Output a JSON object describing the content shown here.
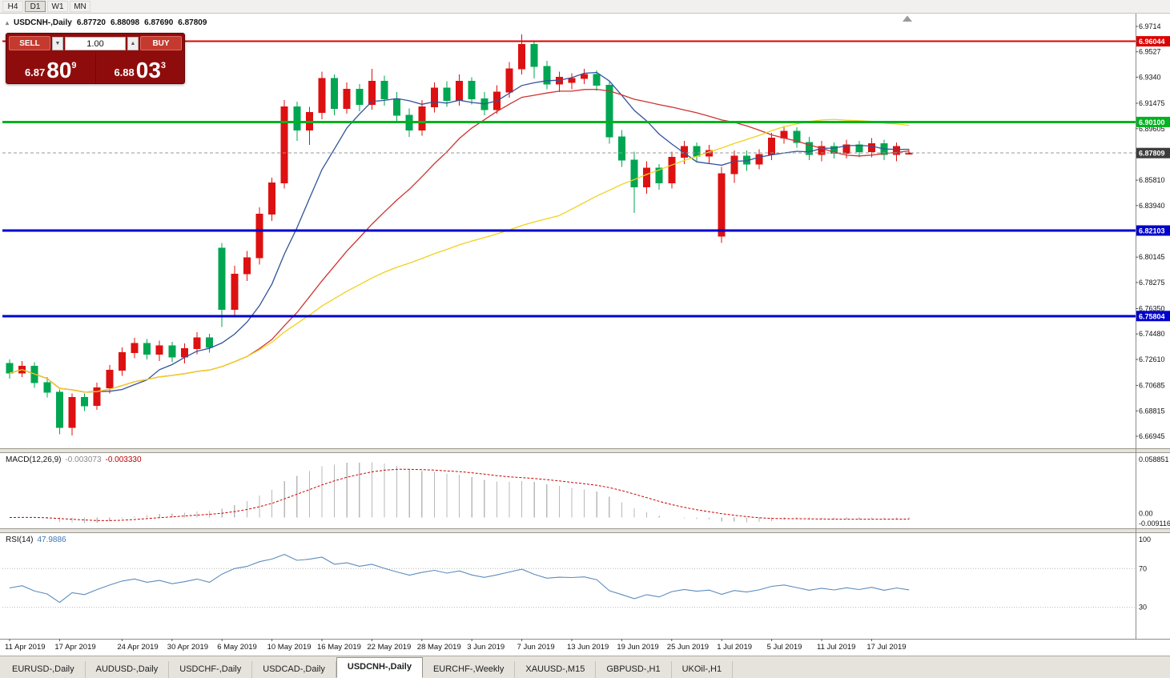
{
  "toolbar": {
    "timeframes": [
      "H4",
      "D1",
      "W1",
      "MN"
    ],
    "active": "D1"
  },
  "chart_header": {
    "collapse_icon": "▴",
    "symbol": "USDCNH-,Daily",
    "open": "6.87720",
    "high": "6.88098",
    "low": "6.87690",
    "close": "6.87809"
  },
  "trade_panel": {
    "sell_label": "SELL",
    "buy_label": "BUY",
    "volume": "1.00",
    "spinner_down": "▼",
    "spinner_up": "▲",
    "sell_small": "6.87",
    "sell_big": "80",
    "sell_sup": "9",
    "buy_small": "6.88",
    "buy_big": "03",
    "buy_sup": "3"
  },
  "indicators": {
    "macd": {
      "label": "MACD(12,26,9)",
      "value_main": "-0.003073",
      "value_signal": "-0.003330",
      "axis": [
        "0.058851",
        "0.00",
        "-0.009116"
      ]
    },
    "rsi": {
      "label": "RSI(14)",
      "value": "47.9886",
      "levels": [
        "100",
        "70",
        "30"
      ]
    }
  },
  "tabs": {
    "items": [
      {
        "label": "EURUSD-,Daily",
        "active": false
      },
      {
        "label": "AUDUSD-,Daily",
        "active": false
      },
      {
        "label": "USDCHF-,Daily",
        "active": false
      },
      {
        "label": "USDCAD-,Daily",
        "active": false
      },
      {
        "label": "USDCNH-,Daily",
        "active": true
      },
      {
        "label": "EURCHF-,Weekly",
        "active": false
      },
      {
        "label": "XAUUSD-,M15",
        "active": false
      },
      {
        "label": "GBPUSD-,H1",
        "active": false
      },
      {
        "label": "UKOil-,H1",
        "active": false
      }
    ]
  },
  "chart_data": {
    "type": "candlestick",
    "title": "USDCNH-,Daily",
    "timeframe": "Daily",
    "colors": {
      "up": "#dd1111",
      "down": "#00a651",
      "ma_fast": "#31539b",
      "ma_mid": "#cf3333",
      "ma_slow": "#f0d21e",
      "macd_hist": "#b8b8b8",
      "macd_signal": "#cc0000",
      "rsi_line": "#5b8cbe",
      "level_dotted": "#b5b5b5"
    },
    "price_axis": {
      "y_top_price": 6.9761,
      "y_bottom_price": 6.6618,
      "ticks": [
        {
          "text": "6.9714",
          "price": 6.9714
        },
        {
          "text": "6.9527",
          "price": 6.9527
        },
        {
          "text": "6.9340",
          "price": 6.934
        },
        {
          "text": "6.91475",
          "price": 6.91475
        },
        {
          "text": "6.89605",
          "price": 6.89605
        },
        {
          "text": "6.85810",
          "price": 6.8581
        },
        {
          "text": "6.83940",
          "price": 6.8394
        },
        {
          "text": "6.80145",
          "price": 6.80145
        },
        {
          "text": "6.78275",
          "price": 6.78275
        },
        {
          "text": "6.76350",
          "price": 6.7635
        },
        {
          "text": "6.74480",
          "price": 6.7448
        },
        {
          "text": "6.72610",
          "price": 6.7261
        },
        {
          "text": "6.70685",
          "price": 6.70685
        },
        {
          "text": "6.68815",
          "price": 6.68815
        },
        {
          "text": "6.66945",
          "price": 6.66945
        }
      ],
      "badges": [
        {
          "text": "6.96044",
          "price": 6.96044,
          "color": "#dd0000"
        },
        {
          "text": "6.90100",
          "price": 6.901,
          "color": "#00b21e"
        },
        {
          "text": "6.87809",
          "price": 6.87809,
          "color": "#3c3c3c"
        },
        {
          "text": "6.82103",
          "price": 6.82103,
          "color": "#0000cc"
        },
        {
          "text": "6.75804",
          "price": 6.75804,
          "color": "#0000cc"
        }
      ]
    },
    "hlines": [
      {
        "price": 6.96044,
        "color": "#dd0000",
        "width": 2
      },
      {
        "price": 6.901,
        "color": "#00b21e",
        "width": 3
      },
      {
        "price": 6.82103,
        "color": "#0000cc",
        "width": 3
      },
      {
        "price": 6.75804,
        "color": "#0000cc",
        "width": 3
      },
      {
        "price": 6.87809,
        "color": "#999999",
        "width": 1,
        "dashed": true
      }
    ],
    "moving_averages": [
      {
        "period": 8,
        "color": "#31539b"
      },
      {
        "period": 20,
        "color": "#cf3333"
      },
      {
        "period": 45,
        "color": "#f0d21e"
      }
    ],
    "macd": {
      "params": [
        12,
        26,
        9
      ],
      "y_max": 0.058851,
      "y_min": -0.009116
    },
    "rsi": {
      "period": 14,
      "levels": [
        70,
        30
      ]
    },
    "date_labels": [
      {
        "label": "11 Apr 2019",
        "i": 0
      },
      {
        "label": "17 Apr 2019",
        "i": 4
      },
      {
        "label": "24 Apr 2019",
        "i": 9
      },
      {
        "label": "30 Apr 2019",
        "i": 13
      },
      {
        "label": "6 May 2019",
        "i": 17
      },
      {
        "label": "10 May 2019",
        "i": 21
      },
      {
        "label": "16 May 2019",
        "i": 25
      },
      {
        "label": "22 May 2019",
        "i": 29
      },
      {
        "label": "28 May 2019",
        "i": 33
      },
      {
        "label": "3 Jun 2019",
        "i": 37
      },
      {
        "label": "7 Jun 2019",
        "i": 41
      },
      {
        "label": "13 Jun 2019",
        "i": 45
      },
      {
        "label": "19 Jun 2019",
        "i": 49
      },
      {
        "label": "25 Jun 2019",
        "i": 53
      },
      {
        "label": "1 Jul 2019",
        "i": 57
      },
      {
        "label": "5 Jul 2019",
        "i": 61
      },
      {
        "label": "11 Jul 2019",
        "i": 65
      },
      {
        "label": "17 Jul 2019",
        "i": 69
      }
    ],
    "candles": [
      [
        6.723,
        6.726,
        6.712,
        6.716
      ],
      [
        6.716,
        6.725,
        6.713,
        6.721
      ],
      [
        6.721,
        6.724,
        6.705,
        6.709
      ],
      [
        6.709,
        6.713,
        6.698,
        6.702
      ],
      [
        6.702,
        6.704,
        6.671,
        6.676
      ],
      [
        6.676,
        6.701,
        6.67,
        6.698
      ],
      [
        6.698,
        6.701,
        6.688,
        6.692
      ],
      [
        6.692,
        6.709,
        6.689,
        6.705
      ],
      [
        6.705,
        6.722,
        6.701,
        6.718
      ],
      [
        6.718,
        6.735,
        6.714,
        6.731
      ],
      [
        6.731,
        6.742,
        6.727,
        6.738
      ],
      [
        6.738,
        6.741,
        6.726,
        6.73
      ],
      [
        6.73,
        6.74,
        6.725,
        6.736
      ],
      [
        6.736,
        6.739,
        6.724,
        6.728
      ],
      [
        6.728,
        6.738,
        6.723,
        6.734
      ],
      [
        6.734,
        6.746,
        6.73,
        6.742
      ],
      [
        6.742,
        6.745,
        6.731,
        6.735
      ],
      [
        6.808,
        6.812,
        6.75,
        6.763
      ],
      [
        6.763,
        6.795,
        6.758,
        6.789
      ],
      [
        6.789,
        6.806,
        6.784,
        6.801
      ],
      [
        6.801,
        6.838,
        6.796,
        6.833
      ],
      [
        6.833,
        6.86,
        6.828,
        6.856
      ],
      [
        6.856,
        6.917,
        6.852,
        6.912
      ],
      [
        6.912,
        6.916,
        6.887,
        6.895
      ],
      [
        6.895,
        6.912,
        6.884,
        6.908
      ],
      [
        6.908,
        6.938,
        6.903,
        6.933
      ],
      [
        6.933,
        6.936,
        6.906,
        6.911
      ],
      [
        6.911,
        6.93,
        6.907,
        6.925
      ],
      [
        6.925,
        6.929,
        6.909,
        6.914
      ],
      [
        6.914,
        6.94,
        6.91,
        6.931
      ],
      [
        6.931,
        6.935,
        6.913,
        6.918
      ],
      [
        6.918,
        6.923,
        6.901,
        6.906
      ],
      [
        6.906,
        6.911,
        6.89,
        6.895
      ],
      [
        6.895,
        6.917,
        6.891,
        6.912
      ],
      [
        6.912,
        6.93,
        6.908,
        6.926
      ],
      [
        6.926,
        6.931,
        6.912,
        6.917
      ],
      [
        6.917,
        6.936,
        6.913,
        6.931
      ],
      [
        6.931,
        6.934,
        6.914,
        6.918
      ],
      [
        6.918,
        6.923,
        6.906,
        6.91
      ],
      [
        6.91,
        6.928,
        6.907,
        6.923
      ],
      [
        6.923,
        6.945,
        6.919,
        6.94
      ],
      [
        6.94,
        6.9655,
        6.936,
        6.958
      ],
      [
        6.958,
        6.96,
        6.933,
        6.942
      ],
      [
        6.942,
        6.946,
        6.925,
        6.929
      ],
      [
        6.929,
        6.938,
        6.923,
        6.934
      ],
      [
        6.93,
        6.937,
        6.925,
        6.933
      ],
      [
        6.933,
        6.94,
        6.929,
        6.936
      ],
      [
        6.936,
        6.939,
        6.924,
        6.928
      ],
      [
        6.928,
        6.931,
        6.885,
        6.89
      ],
      [
        6.89,
        6.895,
        6.868,
        6.873
      ],
      [
        6.873,
        6.879,
        6.834,
        6.853
      ],
      [
        6.853,
        6.872,
        6.848,
        6.867
      ],
      [
        6.867,
        6.87,
        6.851,
        6.856
      ],
      [
        6.856,
        6.879,
        6.852,
        6.875
      ],
      [
        6.875,
        6.887,
        6.87,
        6.883
      ],
      [
        6.883,
        6.886,
        6.872,
        6.876
      ],
      [
        6.876,
        6.884,
        6.87,
        6.88
      ],
      [
        6.817,
        6.868,
        6.812,
        6.863
      ],
      [
        6.863,
        6.88,
        6.856,
        6.876
      ],
      [
        6.876,
        6.88,
        6.865,
        6.87
      ],
      [
        6.87,
        6.881,
        6.866,
        6.877
      ],
      [
        6.877,
        6.893,
        6.873,
        6.889
      ],
      [
        6.889,
        6.898,
        6.885,
        6.894
      ],
      [
        6.894,
        6.897,
        6.882,
        6.886
      ],
      [
        6.886,
        6.89,
        6.873,
        6.877
      ],
      [
        6.877,
        6.887,
        6.872,
        6.883
      ],
      [
        6.883,
        6.886,
        6.874,
        6.878
      ],
      [
        6.878,
        6.888,
        6.874,
        6.884
      ],
      [
        6.884,
        6.887,
        6.875,
        6.879
      ],
      [
        6.879,
        6.889,
        6.875,
        6.885
      ],
      [
        6.885,
        6.888,
        6.873,
        6.877
      ],
      [
        6.877,
        6.886,
        6.872,
        6.883
      ],
      [
        6.8772,
        6.88098,
        6.8769,
        6.87809
      ]
    ]
  }
}
